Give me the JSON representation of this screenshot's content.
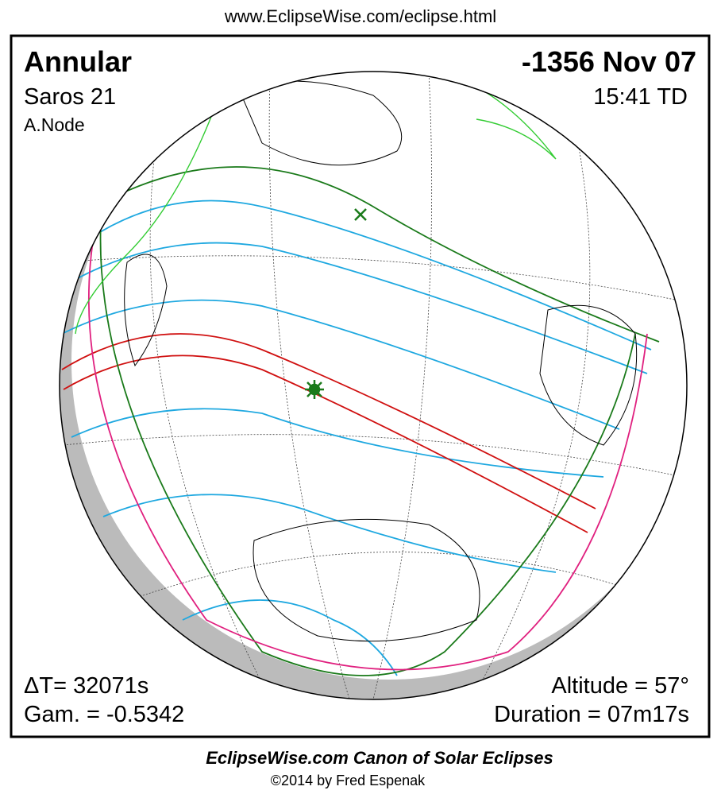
{
  "header": {
    "url": "www.EclipseWise.com/eclipse.html"
  },
  "panel": {
    "eclipse_type": "Annular",
    "date": "-1356 Nov 07",
    "saros": "Saros  21",
    "time": "15:41 TD",
    "node": "A.Node",
    "delta_t": "ΔT=  32071s",
    "gamma": "Gam. = -0.5342",
    "altitude": "Altitude = 57°",
    "duration": "Duration = 07m17s"
  },
  "footer": {
    "title": "EclipseWise.com Canon of Solar Eclipses",
    "copyright": "©2014 by Fred Espenak"
  }
}
